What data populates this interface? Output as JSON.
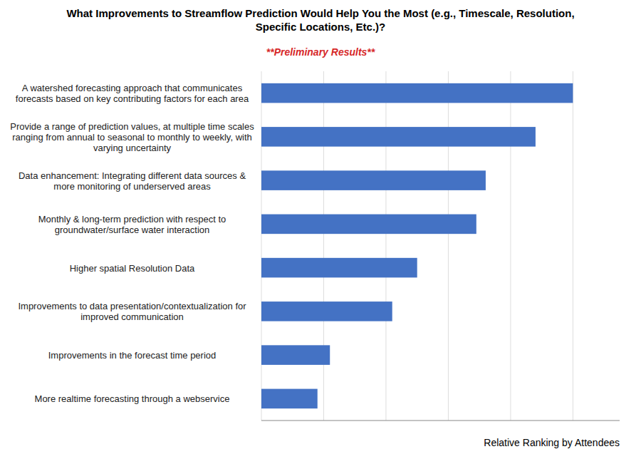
{
  "chart_data": {
    "type": "bar",
    "orientation": "horizontal",
    "title": "What Improvements to Streamflow Prediction Would Help You the Most (e.g., Timescale, Resolution,\nSpecific Locations, Etc.)?",
    "subtitle": "**Preliminary Results**",
    "xlabel": "Relative Ranking by Attendees",
    "categories": [
      "A watershed forecasting approach that communicates\nforecasts based on key contributing factors for each area",
      "Provide a range of prediction values, at multiple time scales\nranging from annual to seasonal to monthly to weekly, with\nvarying uncertainty",
      "Data enhancement:  Integrating different data sources &\nmore monitoring of underserved areas",
      "Monthly & long-term prediction with respect to\ngroundwater/surface water interaction",
      "Higher spatial Resolution Data",
      "Improvements to data presentation/contextualization for\nimproved communication",
      "Improvements in the forecast time period",
      "More realtime forecasting through a webservice"
    ],
    "values": [
      10.0,
      8.8,
      7.2,
      6.9,
      5.0,
      4.2,
      2.2,
      1.8
    ],
    "color": "#4472C4",
    "xlim": [
      0,
      11.5
    ],
    "xticks": [
      0,
      2,
      4,
      6,
      8,
      10
    ],
    "grid": true,
    "tick_labels": "y"
  }
}
